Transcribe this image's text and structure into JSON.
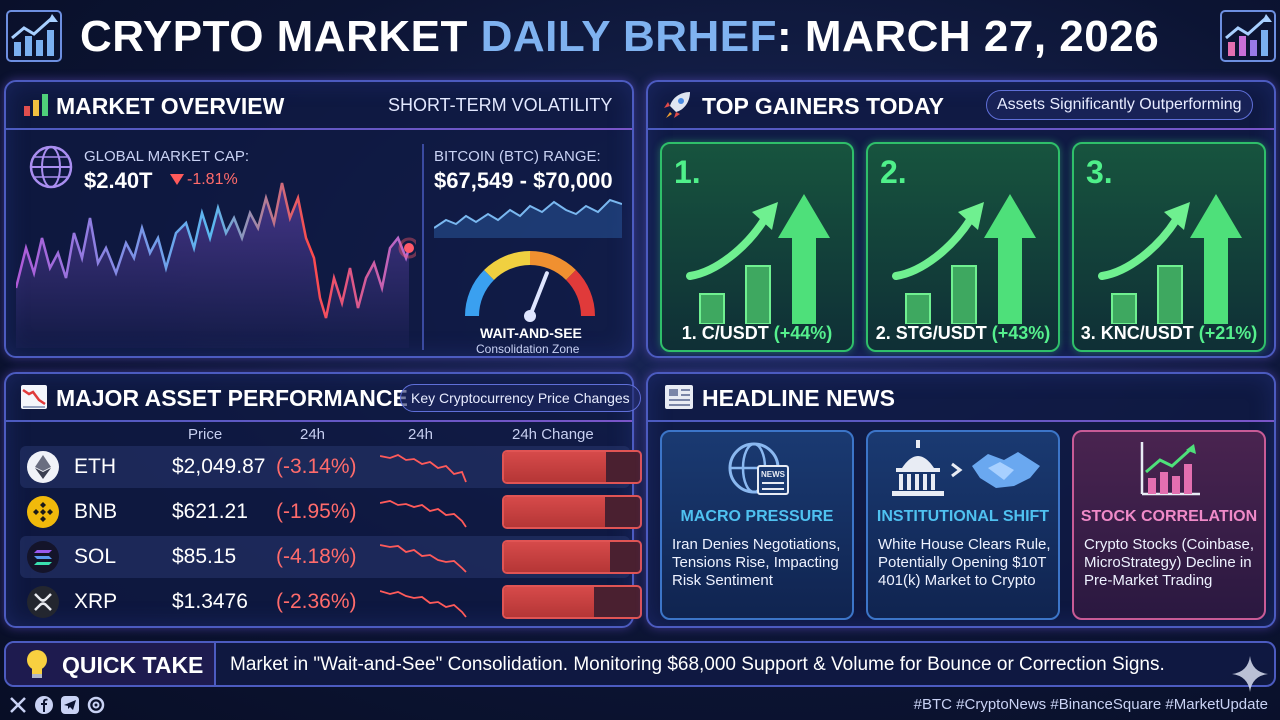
{
  "header": {
    "title_main": "CRYPTO MARKET ",
    "title_highlight": "DAILY BRHEF",
    "title_rest": ": MARCH 27, 2026"
  },
  "market_overview": {
    "title": "MARKET OVERVIEW",
    "subtitle": "SHORT-TERM VOLATILITY",
    "cap_label": "GLOBAL MARKET CAP:",
    "cap_value": "$2.40T",
    "cap_change": "-1.81%",
    "btc_label": "BITCOIN (BTC) RANGE:",
    "btc_range": "$67,549 - $70,000",
    "gauge_label": "WAIT-AND-SEE",
    "gauge_sub": "Consolidation Zone",
    "gauge_level": 0.62
  },
  "top_gainers": {
    "title": "TOP GAINERS TODAY",
    "pill": "Assets Significantly Outperforming",
    "items": [
      {
        "rank": "1.",
        "pair": "1. C/USDT",
        "pct": "(+44%)"
      },
      {
        "rank": "2.",
        "pair": "2. STG/USDT",
        "pct": "(+43%)"
      },
      {
        "rank": "3.",
        "pair": "3. KNC/USDT",
        "pct": "(+21%)"
      }
    ]
  },
  "assets": {
    "title": "MAJOR ASSET PERFORMANCE",
    "pill": "Key Cryptocurrency Price Changes",
    "headers": {
      "price": "Price",
      "h24": "24h",
      "spark": "24h",
      "change": "24h Change"
    },
    "rows": [
      {
        "symbol": "ETH",
        "price": "$2,049.87",
        "change": "(-3.14%)",
        "fill": 0.75
      },
      {
        "symbol": "BNB",
        "price": "$621.21",
        "change": "(-1.95%)",
        "fill": 0.74
      },
      {
        "symbol": "SOL",
        "price": "$85.15",
        "change": "(-4.18%)",
        "fill": 0.78
      },
      {
        "symbol": "XRP",
        "price": "$1.3476",
        "change": "(-2.36%)",
        "fill": 0.66
      }
    ]
  },
  "news": {
    "title": "HEADLINE NEWS",
    "icon_text": "NEWS",
    "items": [
      {
        "head": "MACRO PRESSURE",
        "body": "Iran Denies Negotiations, Tensions Rise, Impacting Risk Sentiment"
      },
      {
        "head": "INSTITUTIONAL SHIFT",
        "body": "White House Clears Rule, Potentially Opening $10T 401(k) Market to Crypto"
      },
      {
        "head": "STOCK CORRELATION",
        "body": "Crypto Stocks (Coinbase, MicroStrategy) Decline in Pre-Market Trading"
      }
    ]
  },
  "quick_take": {
    "title": "QUICK TAKE",
    "text": "Market in \"Wait-and-See\" Consolidation. Monitoring $68,000 Support & Volume for Bounce or Correction Signs."
  },
  "footer": {
    "tags": "#BTC #CryptoNews #BinanceSquare #MarketUpdate"
  },
  "colors": {
    "accent": "#7fb2f0",
    "green": "#4ff08a",
    "red": "#e05454",
    "panel_border": "#4c5bc0"
  }
}
